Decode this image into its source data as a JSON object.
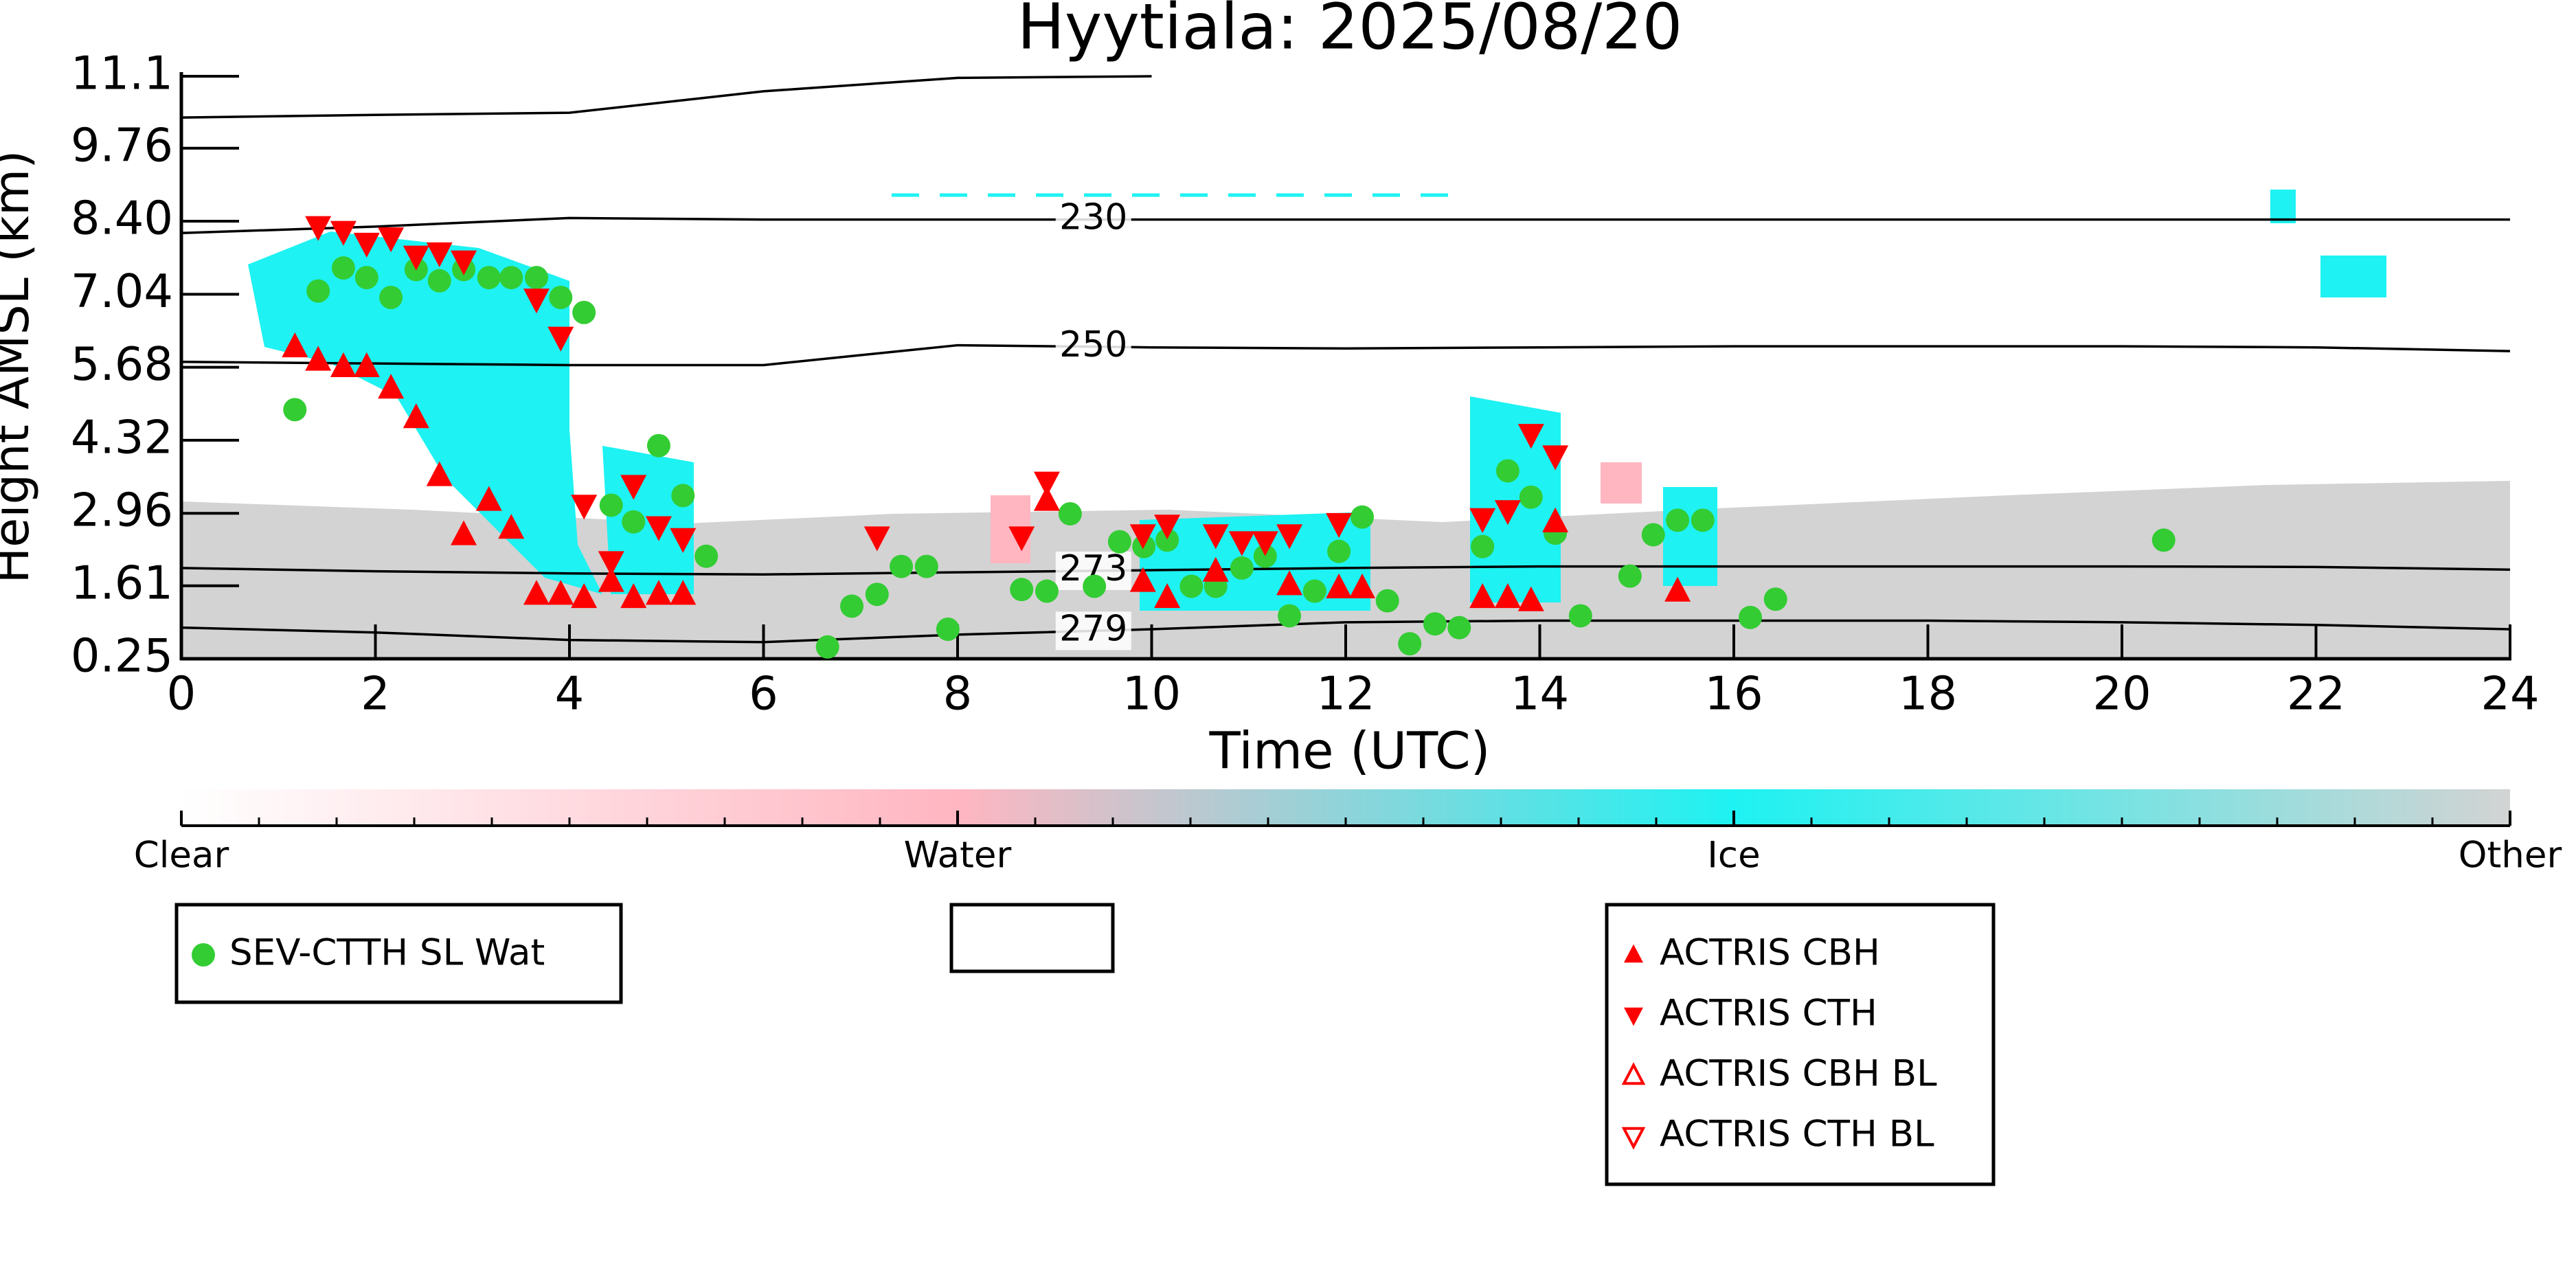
{
  "chart_data": {
    "type": "scatter",
    "title": "Hyytiala: 2025/08/20",
    "xlabel": "Time (UTC)",
    "ylabel": "Height AMSL (km)",
    "xlim": [
      0,
      24
    ],
    "xticks": [
      0,
      2,
      4,
      6,
      8,
      10,
      12,
      14,
      16,
      18,
      20,
      22,
      24
    ],
    "ylim": [
      0.25,
      11.1
    ],
    "yticks": [
      0.25,
      1.61,
      2.96,
      4.32,
      5.68,
      7.04,
      {
        "value": 8.4,
        "label": "8.40"
      },
      9.76,
      11.1
    ],
    "series": [
      {
        "name": "SEV-CTTH SL Wat",
        "color": "#33cc33",
        "marker": "circle",
        "filled": true,
        "legend_box": "left",
        "x": [
          1.17,
          1.41,
          1.67,
          1.91,
          2.16,
          2.42,
          2.66,
          2.91,
          3.17,
          3.4,
          3.66,
          3.91,
          4.15,
          4.43,
          4.92,
          4.66,
          5.17,
          5.41,
          6.66,
          6.91,
          7.17,
          7.42,
          7.68,
          7.9,
          8.66,
          8.92,
          9.16,
          9.41,
          9.67,
          9.92,
          10.16,
          10.41,
          10.66,
          10.93,
          11.17,
          11.42,
          11.68,
          11.93,
          12.17,
          12.43,
          12.66,
          12.92,
          13.17,
          13.41,
          13.67,
          13.91,
          14.16,
          14.42,
          14.93,
          15.17,
          15.42,
          15.68,
          16.17,
          16.43,
          20.43
        ],
        "values": [
          4.89,
          7.1,
          7.53,
          7.35,
          6.98,
          7.5,
          7.29,
          7.5,
          7.35,
          7.35,
          7.35,
          6.98,
          6.7,
          3.11,
          4.22,
          2.8,
          3.29,
          2.16,
          0.47,
          1.23,
          1.45,
          1.97,
          1.97,
          0.8,
          1.54,
          1.51,
          2.95,
          1.6,
          2.43,
          2.34,
          2.46,
          1.6,
          1.6,
          1.94,
          2.16,
          1.05,
          1.51,
          2.25,
          2.89,
          1.33,
          0.53,
          0.9,
          0.83,
          2.34,
          3.75,
          3.26,
          2.59,
          1.05,
          1.79,
          2.56,
          2.83,
          2.83,
          1.02,
          1.36,
          2.46
        ]
      },
      {
        "name": "ACTRIS CBH",
        "color": "#ff0000",
        "marker": "triangle-up",
        "filled": true,
        "legend_box": "right",
        "x": [
          1.17,
          1.41,
          1.67,
          1.91,
          2.16,
          2.42,
          2.66,
          2.91,
          3.17,
          3.4,
          3.66,
          3.91,
          4.15,
          4.43,
          4.66,
          4.92,
          5.17,
          8.92,
          9.91,
          10.16,
          10.66,
          11.42,
          11.93,
          12.17,
          13.41,
          13.67,
          13.91,
          14.16,
          15.42
        ],
        "values": [
          6.06,
          5.81,
          5.69,
          5.69,
          5.29,
          4.74,
          3.66,
          2.56,
          3.2,
          2.68,
          1.45,
          1.45,
          1.39,
          1.69,
          1.39,
          1.45,
          1.45,
          3.2,
          1.69,
          1.39,
          1.88,
          1.63,
          1.57,
          1.57,
          1.39,
          1.39,
          1.33,
          2.8,
          1.51
        ]
      },
      {
        "name": "ACTRIS CTH",
        "color": "#ff0000",
        "marker": "triangle-down",
        "filled": true,
        "legend_box": "right",
        "x": [
          1.41,
          1.67,
          1.91,
          2.16,
          2.42,
          2.66,
          2.91,
          3.66,
          3.91,
          4.15,
          4.43,
          4.66,
          4.92,
          5.17,
          7.17,
          8.66,
          8.92,
          9.91,
          10.16,
          10.66,
          10.93,
          11.17,
          11.42,
          11.93,
          13.41,
          13.67,
          13.91,
          14.16
        ],
        "values": [
          8.3,
          8.21,
          7.99,
          8.09,
          7.75,
          7.81,
          7.66,
          6.95,
          6.24,
          3.11,
          2.06,
          3.48,
          2.71,
          2.49,
          2.52,
          2.52,
          3.54,
          2.56,
          2.74,
          2.56,
          2.43,
          2.43,
          2.56,
          2.77,
          2.86,
          3.01,
          4.43,
          4.03
        ]
      },
      {
        "name": "ACTRIS CBH BL",
        "color": "#ff0000",
        "marker": "triangle-up",
        "filled": false,
        "legend_box": "right",
        "x": [],
        "values": []
      },
      {
        "name": "ACTRIS CTH BL",
        "color": "#ff0000",
        "marker": "triangle-down",
        "filled": false,
        "legend_box": "right",
        "x": [],
        "values": []
      }
    ],
    "contour_x": [
      0,
      2,
      4,
      6,
      8,
      10,
      12,
      14,
      16,
      18,
      20,
      22,
      24
    ],
    "contours": [
      {
        "values": [
          10.33,
          10.38,
          10.42,
          10.82,
          11.07,
          11.1,
          null,
          null,
          null,
          null,
          null,
          null,
          null
        ]
      },
      {
        "level": 230,
        "values": [
          8.18,
          8.3,
          8.46,
          8.43,
          8.43,
          8.43,
          8.43,
          8.43,
          8.43,
          8.43,
          8.43,
          8.43,
          8.43
        ]
      },
      {
        "level": 250,
        "values": [
          5.78,
          5.75,
          5.72,
          5.72,
          6.09,
          6.05,
          6.03,
          6.05,
          6.07,
          6.07,
          6.07,
          6.05,
          5.98
        ]
      },
      {
        "level": 273,
        "values": [
          1.94,
          1.88,
          1.84,
          1.82,
          1.86,
          1.9,
          1.94,
          1.97,
          1.97,
          1.97,
          1.97,
          1.96,
          1.91
        ]
      },
      {
        "level": 279,
        "values": [
          0.83,
          0.74,
          0.6,
          0.56,
          0.7,
          0.8,
          0.93,
          0.96,
          0.96,
          0.96,
          0.93,
          0.88,
          0.8
        ]
      }
    ],
    "colorbar": {
      "labels": [
        "Clear",
        "Water",
        "Ice",
        "Other"
      ],
      "colors": [
        "#ffffff",
        "#ffb6c1",
        "#1ef2f2",
        "#d3d3d3"
      ]
    }
  }
}
